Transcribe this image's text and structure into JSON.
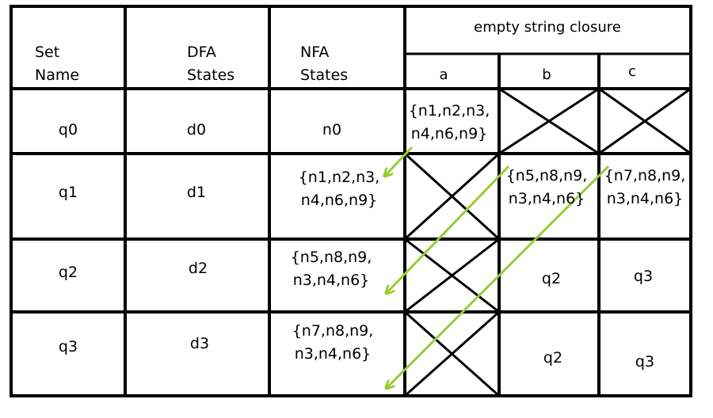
{
  "header": {
    "set_name": [
      "Set",
      "Name"
    ],
    "dfa_states": [
      "DFA",
      "States"
    ],
    "nfa_states": [
      "NFA",
      "States"
    ],
    "closure_title": "empty string closure",
    "symbols": [
      "a",
      "b",
      "c"
    ]
  },
  "rows": [
    {
      "set": "q0",
      "dfa": "d0",
      "nfa": [
        "n0"
      ],
      "a": [
        "{n1,n2,n3,",
        "n4,n6,n9}"
      ],
      "b": "",
      "c": ""
    },
    {
      "set": "q1",
      "dfa": "d1",
      "nfa": [
        "{n1,n2,n3,",
        "n4,n6,n9}"
      ],
      "a": "",
      "b": [
        "{n5,n8,n9,",
        "n3,n4,n6}"
      ],
      "c": [
        "{n7,n8,n9,",
        "n3,n4,n6}"
      ]
    },
    {
      "set": "q2",
      "dfa": "d2",
      "nfa": [
        "{n5,n8,n9,",
        "n3,n4,n6}"
      ],
      "a": "",
      "b": "q2",
      "c": "q3"
    },
    {
      "set": "q3",
      "dfa": "d3",
      "nfa": [
        "{n7,n8,n9,",
        "n3,n4,n6}"
      ],
      "a": "",
      "b": "q2",
      "c": "q3"
    }
  ],
  "colors": {
    "grid": "#000000",
    "arrow": "#99cc33",
    "background": "#ffffff"
  }
}
